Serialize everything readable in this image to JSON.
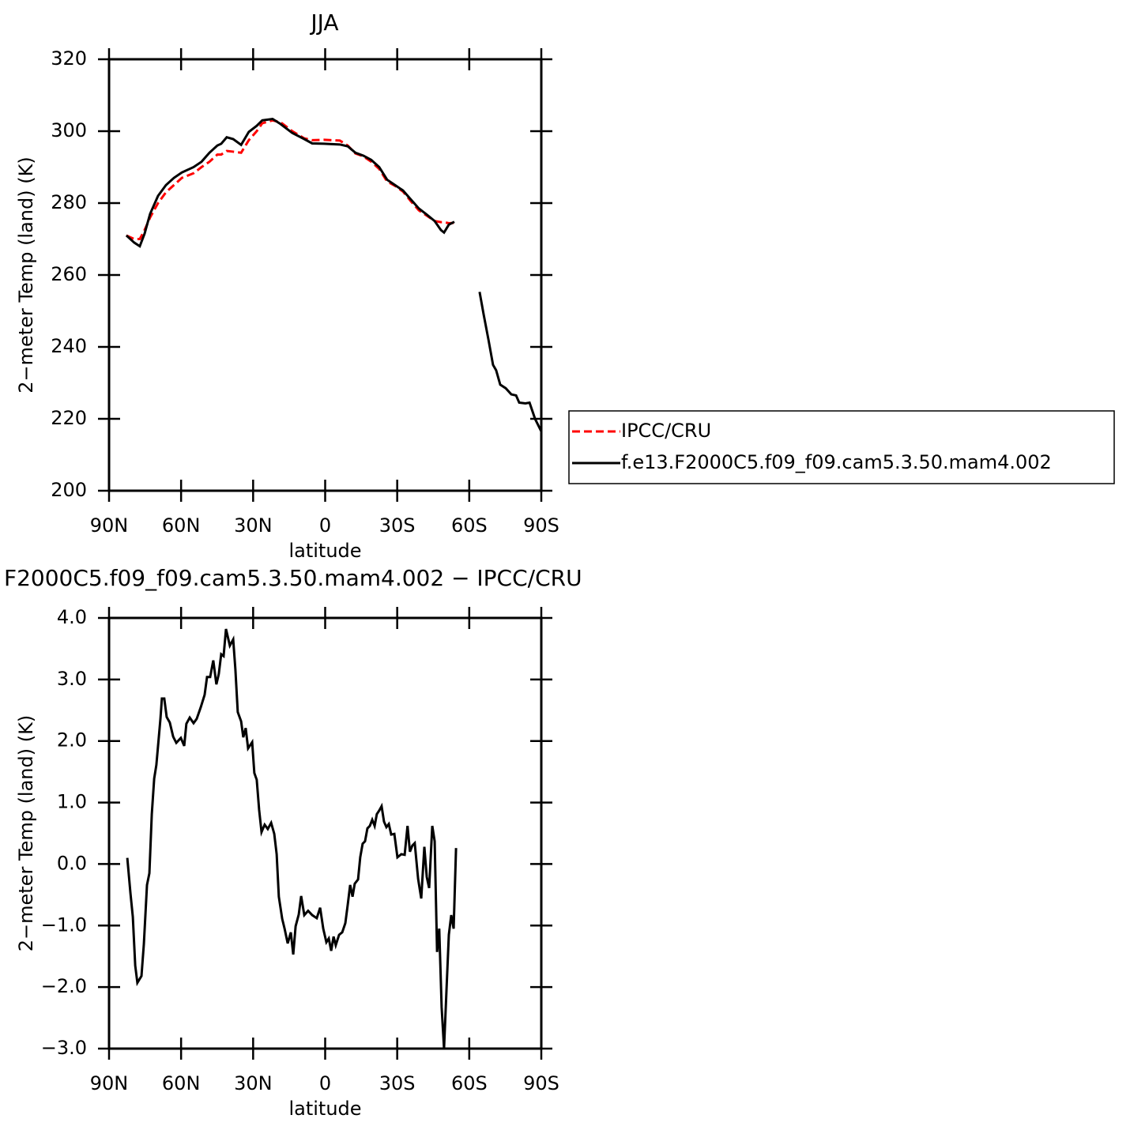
{
  "chart_data": [
    {
      "type": "line",
      "title": "JJA",
      "xlabel": "latitude",
      "ylabel": "2−meter Temp (land) (K)",
      "x": [
        82.8,
        79.5,
        77.2,
        75.2,
        72.9,
        69.6,
        66.3,
        63,
        59.7,
        54.8,
        51.5,
        48.2,
        44.9,
        43.3,
        41,
        38.3,
        35,
        31.8,
        28.5,
        26.2,
        21.9,
        18.6,
        13.7,
        8.7,
        5.4,
        0.5,
        -6.1,
        -9.4,
        -12.6,
        -15.9,
        -19.2,
        -22.5,
        -25.8,
        -29.1,
        -32.4,
        -35.7,
        -39,
        -42.3,
        -45.6,
        -48.2,
        -49.5,
        -51.5,
        -53.8,
        -59,
        -64.3,
        -66,
        -68,
        -69.9,
        -71.2,
        -72.9,
        -75.2,
        -77.5,
        -79.5,
        -80.8,
        -83.4,
        -85.1,
        -87.4,
        -90
      ],
      "series": [
        {
          "name": "IPCC/CRU",
          "color": "#ff0000",
          "dash": "dashed",
          "values": [
            271,
            270,
            270,
            272.5,
            276,
            280,
            283,
            285,
            287,
            288.3,
            290,
            291.5,
            293.5,
            293.5,
            294.5,
            294.3,
            294,
            297.5,
            300,
            302.2,
            303,
            302.5,
            300,
            298,
            297.5,
            297.6,
            297.4,
            296,
            293.8,
            293,
            291.5,
            289.5,
            286,
            284.8,
            283.2,
            280.5,
            278,
            276.5,
            275,
            274.7,
            274.7,
            274.4,
            274.5,
            null,
            null,
            null,
            null,
            null,
            null,
            null,
            null,
            null,
            null,
            null,
            null,
            null,
            null,
            null
          ]
        },
        {
          "name": "f.e13.F2000C5.f09_f09.cam5.3.50.mam4.002",
          "color": "#000000",
          "dash": "solid",
          "values": [
            271,
            269,
            268,
            271.5,
            277,
            282,
            285,
            287,
            288.5,
            290,
            291.5,
            294,
            296,
            296.5,
            298.3,
            297.8,
            296.2,
            299.8,
            301.5,
            303,
            303.4,
            302,
            299.5,
            297.8,
            296.6,
            296.5,
            296.3,
            295.8,
            294,
            293.2,
            292,
            290,
            286.5,
            285,
            283.5,
            281,
            278.5,
            276.8,
            275,
            272.5,
            271.8,
            274,
            274.8,
            null,
            255.3,
            249,
            242,
            235,
            233.5,
            229.5,
            228.5,
            226.8,
            226.5,
            224.5,
            224.3,
            224.5,
            220,
            216.5
          ]
        }
      ],
      "xlim": [
        90,
        -90
      ],
      "xticks": [
        {
          "value": 90,
          "label": "90N"
        },
        {
          "value": 60,
          "label": "60N"
        },
        {
          "value": 30,
          "label": "30N"
        },
        0,
        {
          "value": -30,
          "label": "30S"
        },
        {
          "value": -60,
          "label": "60S"
        },
        {
          "value": -90,
          "label": "90S"
        }
      ],
      "ylim": [
        200,
        320
      ],
      "yticks": [
        200,
        220,
        240,
        260,
        280,
        300,
        320
      ],
      "legend": "right"
    },
    {
      "type": "line",
      "title": "F2000C5.f09_f09.cam5.3.50.mam4.002 − IPCC/CRU",
      "xlabel": "latitude",
      "ylabel": "2−meter Temp (land) (K)",
      "x": [
        82.4,
        81.1,
        80.1,
        79.1,
        78.2,
        76.5,
        75.5,
        74.2,
        73.2,
        72.2,
        71.2,
        70.3,
        68.6,
        68,
        67,
        66,
        64.7,
        63.3,
        62,
        60.1,
        58.7,
        57.8,
        56.4,
        54.8,
        53.5,
        51.8,
        50.2,
        49.2,
        47.9,
        46.6,
        45.3,
        44.3,
        43.3,
        42.3,
        41.3,
        39.7,
        38.3,
        37.4,
        36.4,
        35,
        34.1,
        33.1,
        32.1,
        30.4,
        29.5,
        28.5,
        27.5,
        26.5,
        25.2,
        23.9,
        22.5,
        21.2,
        20.2,
        19.3,
        17.9,
        16.9,
        15.6,
        14.3,
        13.3,
        12.3,
        11,
        10,
        8.7,
        7.1,
        5.4,
        3.5,
        2.1,
        0.8,
        -0.5,
        -1.5,
        -2.5,
        -3.5,
        -4.4,
        -5.8,
        -7.1,
        -8.4,
        -9.4,
        -10.4,
        -11.4,
        -12.3,
        -13.7,
        -14.6,
        -15.6,
        -16.6,
        -17.6,
        -18.6,
        -19.6,
        -20.6,
        -21.5,
        -22.5,
        -23.5,
        -24.5,
        -25.5,
        -26.5,
        -27.5,
        -28.8,
        -30.1,
        -31.7,
        -33.1,
        -34.3,
        -35.3,
        -36.3,
        -37.3,
        -38.7,
        -40,
        -41.3,
        -42.3,
        -43.3,
        -44.6,
        -45.6,
        -46.6,
        -47.5,
        -48.5,
        -49.5,
        -50.5,
        -51.5,
        -52.5,
        -53.5,
        -54.5
      ],
      "series": [
        {
          "color": "#000000",
          "dash": "solid",
          "values": [
            0.1,
            -0.47,
            -0.86,
            -1.65,
            -1.93,
            -1.82,
            -1.3,
            -0.34,
            -0.15,
            0.81,
            1.39,
            1.61,
            2.36,
            2.69,
            2.69,
            2.39,
            2.3,
            2.07,
            1.97,
            2.05,
            1.92,
            2.28,
            2.38,
            2.29,
            2.36,
            2.55,
            2.75,
            3.04,
            3.04,
            3.31,
            2.92,
            3.09,
            3.41,
            3.38,
            3.82,
            3.55,
            3.65,
            3.17,
            2.47,
            2.32,
            2.06,
            2.21,
            1.88,
            1.98,
            1.48,
            1.37,
            0.88,
            0.52,
            0.64,
            0.57,
            0.67,
            0.49,
            0.16,
            -0.53,
            -0.89,
            -1.05,
            -1.29,
            -1.11,
            -1.47,
            -1.01,
            -0.82,
            -0.52,
            -0.83,
            -0.76,
            -0.83,
            -0.88,
            -0.71,
            -1.05,
            -1.27,
            -1.21,
            -1.41,
            -1.18,
            -1.32,
            -1.15,
            -1.11,
            -0.96,
            -0.66,
            -0.34,
            -0.53,
            -0.32,
            -0.25,
            0.11,
            0.33,
            0.37,
            0.58,
            0.62,
            0.72,
            0.62,
            0.81,
            0.87,
            0.94,
            0.69,
            0.6,
            0.65,
            0.48,
            0.49,
            0.11,
            0.16,
            0.15,
            0.62,
            0.2,
            0.3,
            0.34,
            -0.24,
            -0.56,
            0.28,
            -0.21,
            -0.39,
            0.62,
            0.37,
            -1.43,
            -1.05,
            -2.33,
            -3.0,
            -2.07,
            -1.15,
            -0.83,
            -1.05,
            0.26
          ]
        }
      ],
      "xlim": [
        90,
        -90
      ],
      "xticks": [
        {
          "value": 90,
          "label": "90N"
        },
        {
          "value": 60,
          "label": "60N"
        },
        {
          "value": 30,
          "label": "30N"
        },
        0,
        {
          "value": -30,
          "label": "30S"
        },
        {
          "value": -60,
          "label": "60S"
        },
        {
          "value": -90,
          "label": "90S"
        }
      ],
      "ylim": [
        -3,
        4
      ],
      "yticks": [
        {
          "value": -3,
          "label": "−3.0"
        },
        {
          "value": -2,
          "label": "−2.0"
        },
        {
          "value": -1,
          "label": "−1.0"
        },
        {
          "value": 0,
          "label": "0.0"
        },
        {
          "value": 1,
          "label": "1.0"
        },
        {
          "value": 2,
          "label": "2.0"
        },
        {
          "value": 3,
          "label": "3.0"
        },
        {
          "value": 4,
          "label": "4.0"
        }
      ]
    }
  ]
}
